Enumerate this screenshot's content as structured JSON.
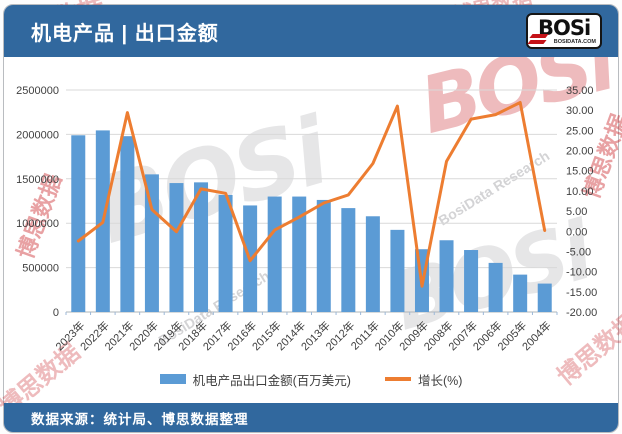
{
  "header": {
    "title": "机电产品 | 出口金额",
    "logo": {
      "brand": "BOSi",
      "domain": "BOSIDATA.COM"
    }
  },
  "footer": {
    "source": "数据来源：统计局、博思数据整理"
  },
  "watermarks": {
    "bosi": "BOSi",
    "cn": "博思数据",
    "en": "BosiData Research",
    "short": "数据"
  },
  "colors": {
    "band_blue": "#31689E",
    "bar_blue": "#5B9BD5",
    "line_orange": "#ED7D31",
    "grid_gray": "#D9D9D9",
    "axis_line": "#aeb4ba",
    "tick_mark": "#9cb8d8",
    "axis_text": "#404040"
  },
  "chart_data": {
    "type": "bar",
    "subtype": "combo-bar-line",
    "title": "机电产品 | 出口金额",
    "categories": [
      "2023年",
      "2022年",
      "2021年",
      "2020年",
      "2019年",
      "2018年",
      "2017年",
      "2016年",
      "2015年",
      "2014年",
      "2013年",
      "2012年",
      "2011年",
      "2010年",
      "2009年",
      "2008年",
      "2007年",
      "2006年",
      "2005年",
      "2004年"
    ],
    "series": [
      {
        "name": "机电产品出口金额(百万美元)",
        "type": "bar",
        "axis": "left",
        "color": "#5B9BD5",
        "values": [
          1990000,
          2045000,
          1980000,
          1550000,
          1452000,
          1460000,
          1318000,
          1200000,
          1300000,
          1300000,
          1262000,
          1170000,
          1078000,
          925000,
          707000,
          808000,
          698000,
          553000,
          421000,
          320000
        ]
      },
      {
        "name": "增长(%)",
        "type": "line",
        "axis": "right",
        "color": "#ED7D31",
        "values": [
          -2.4,
          2.2,
          29.4,
          5.4,
          -0.1,
          10.5,
          9.4,
          -7.3,
          0.3,
          3.5,
          7.0,
          9.0,
          16.8,
          31.0,
          -13.6,
          17.3,
          27.8,
          28.9,
          31.9,
          0.2
        ]
      }
    ],
    "left_axis": {
      "min": 0,
      "max": 2500000,
      "step": 500000,
      "ticks": [
        "2500000",
        "2000000",
        "1500000",
        "1000000",
        "500000",
        "0"
      ]
    },
    "right_axis": {
      "min": -20,
      "max": 35,
      "step": 5,
      "ticks": [
        "35.00",
        "30.00",
        "25.00",
        "20.00",
        "15.00",
        "10.00",
        "5.00",
        "0.00",
        "-5.00",
        "-10.00",
        "-15.00",
        "-20.00"
      ]
    },
    "grid": true,
    "legend_position": "bottom",
    "x_label_rotation": -45
  }
}
